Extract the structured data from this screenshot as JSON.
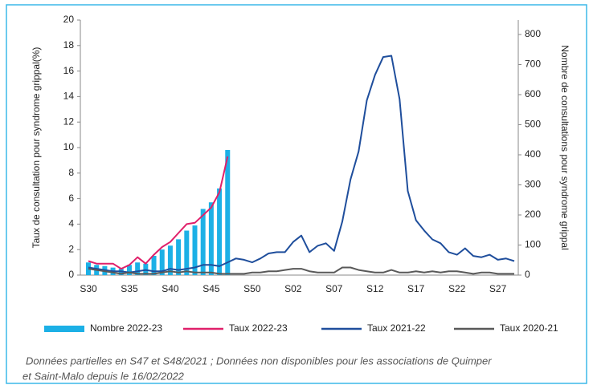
{
  "chart_data": {
    "type": "bar",
    "ylabel": "Taux de consultation pour syndrome grippal(%)",
    "y2label": "Nombre de consultations pour syndrome grippal",
    "categories": [
      "S30",
      null,
      null,
      null,
      null,
      "S35",
      null,
      null,
      null,
      null,
      "S40",
      null,
      null,
      null,
      null,
      "S45",
      null,
      null,
      null,
      null,
      "S50",
      null,
      null,
      null,
      null,
      "S02",
      null,
      null,
      null,
      null,
      "S07",
      null,
      null,
      null,
      null,
      "S12",
      null,
      null,
      null,
      null,
      "S17",
      null,
      null,
      null,
      null,
      "S22",
      null,
      null,
      null,
      null,
      "S27",
      null,
      null
    ],
    "ylim": [
      0,
      20
    ],
    "yticks": [
      0,
      2,
      4,
      6,
      8,
      10,
      12,
      14,
      16,
      18,
      20
    ],
    "y2lim": [
      0,
      848
    ],
    "y2ticks": [
      0,
      100,
      200,
      300,
      400,
      500,
      600,
      700,
      800
    ],
    "series": [
      {
        "name": "Nombre 2022-23",
        "type": "bar",
        "axis": "y2",
        "color": "#1cb0e6",
        "values": [
          42,
          34,
          30,
          25,
          21,
          34,
          42,
          38,
          64,
          85,
          98,
          119,
          148,
          165,
          220,
          242,
          288,
          416,
          null,
          null,
          null,
          null,
          null,
          null,
          null,
          null,
          null,
          null,
          null,
          null,
          null,
          null,
          null,
          null,
          null,
          null,
          null,
          null,
          null,
          null,
          null,
          null,
          null,
          null,
          null,
          null,
          null,
          null,
          null,
          null,
          null,
          null,
          null
        ]
      },
      {
        "name": "Taux 2022-23",
        "type": "line",
        "color": "#e0206a",
        "values": [
          1.1,
          0.9,
          0.9,
          0.9,
          0.5,
          0.8,
          1.4,
          0.9,
          1.6,
          2.2,
          2.6,
          3.3,
          4.0,
          4.1,
          4.7,
          5.3,
          6.5,
          9.3,
          null,
          null,
          null,
          null,
          null,
          null,
          null,
          null,
          null,
          null,
          null,
          null,
          null,
          null,
          null,
          null,
          null,
          null,
          null,
          null,
          null,
          null,
          null,
          null,
          null,
          null,
          null,
          null,
          null,
          null,
          null,
          null,
          null,
          null,
          null
        ]
      },
      {
        "name": "Taux 2021-22",
        "type": "line",
        "color": "#1f4e9c",
        "values": [
          0.6,
          0.5,
          0.4,
          0.3,
          0.3,
          0.2,
          0.3,
          0.4,
          0.3,
          0.3,
          0.5,
          0.4,
          0.5,
          0.6,
          0.8,
          0.8,
          0.7,
          1.0,
          1.3,
          1.2,
          1.0,
          1.3,
          1.7,
          1.8,
          1.8,
          2.6,
          3.1,
          1.8,
          2.3,
          2.5,
          1.9,
          4.2,
          7.5,
          9.7,
          13.7,
          15.7,
          17.1,
          17.2,
          13.8,
          6.6,
          4.3,
          3.5,
          2.8,
          2.5,
          1.8,
          1.6,
          2.1,
          1.5,
          1.4,
          1.6,
          1.2,
          1.3,
          1.1
        ]
      },
      {
        "name": "Taux 2020-21",
        "type": "line",
        "color": "#595959",
        "values": [
          0.5,
          0.4,
          0.3,
          0.2,
          0.1,
          0.2,
          0.1,
          0.1,
          0.1,
          0.2,
          0.3,
          0.2,
          0.3,
          0.2,
          0.2,
          0.2,
          0.1,
          0.1,
          0.1,
          0.1,
          0.2,
          0.2,
          0.3,
          0.3,
          0.4,
          0.5,
          0.5,
          0.3,
          0.2,
          0.2,
          0.2,
          0.6,
          0.6,
          0.4,
          0.3,
          0.2,
          0.2,
          0.4,
          0.2,
          0.2,
          0.3,
          0.2,
          0.3,
          0.2,
          0.3,
          0.3,
          0.2,
          0.1,
          0.2,
          0.2,
          0.1,
          0.1,
          0.1
        ]
      }
    ],
    "footnote": [
      "Données partielles en S47 et S48/2021 ; Données non disponibles pour les associations de Quimper",
      "et Saint-Malo depuis le 16/02/2022"
    ]
  }
}
